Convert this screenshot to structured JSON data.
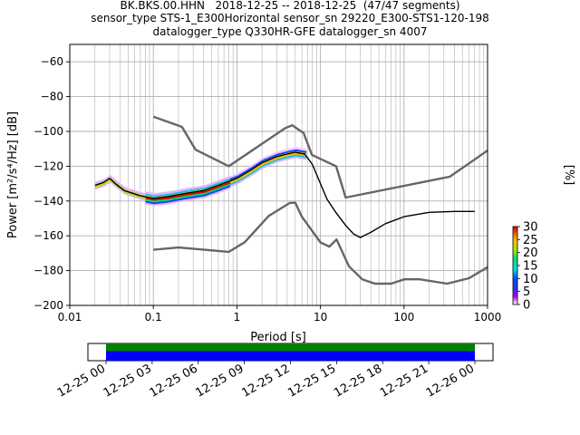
{
  "title": {
    "line1": "BK.BKS.00.HHN   2018-12-25 -- 2018-12-25  (47/47 segments)",
    "line2": "sensor_type STS-1_E300Horizontal sensor_sn 29220_E300-STS1-120-198",
    "line3": "datalogger_type Q330HR-GFE datalogger_sn 4007"
  },
  "colorbar": {
    "label": "[%]",
    "ticks": [
      "0",
      "5",
      "10",
      "15",
      "20",
      "25",
      "30"
    ],
    "range": [
      0,
      30
    ]
  },
  "timebar": {
    "ticks": [
      "12-25 00",
      "12-25 03",
      "12-25 06",
      "12-25 09",
      "12-25 12",
      "12-25 15",
      "12-25 18",
      "12-25 21",
      "12-26 00"
    ],
    "bands": [
      {
        "name": "data",
        "color": "#008000"
      },
      {
        "name": "gaps",
        "color": "#0000ff"
      }
    ]
  },
  "chart_data": {
    "type": "line",
    "xlabel": "Period [s]",
    "ylabel": "Power [m²/s⁴/Hz] [dB]",
    "xscale": "log",
    "xlim": [
      0.01,
      1000
    ],
    "ylim": [
      -200,
      -50
    ],
    "xticks": [
      {
        "value": 0.01,
        "label": "0.01"
      },
      {
        "value": 0.1,
        "label": "0.1"
      },
      {
        "value": 1,
        "label": "1"
      },
      {
        "value": 10,
        "label": "10"
      },
      {
        "value": 100,
        "label": "100"
      },
      {
        "value": 1000,
        "label": "1000"
      }
    ],
    "yticks": [
      {
        "value": -60,
        "label": "−60"
      },
      {
        "value": -80,
        "label": "−80"
      },
      {
        "value": -100,
        "label": "−100"
      },
      {
        "value": -120,
        "label": "−120"
      },
      {
        "value": -140,
        "label": "−140"
      },
      {
        "value": -160,
        "label": "−160"
      },
      {
        "value": -180,
        "label": "−180"
      },
      {
        "value": -200,
        "label": "−200"
      }
    ],
    "grid": true,
    "series": [
      {
        "role": "new-high-noise-model",
        "color": "#666666",
        "x": [
          0.1,
          0.22,
          0.32,
          0.8,
          3.8,
          4.6,
          6.3,
          7.9,
          15.4,
          20,
          354.8,
          1000
        ],
        "y": [
          -91.5,
          -97.4,
          -110.5,
          -120,
          -98,
          -96.5,
          -101,
          -113.5,
          -120,
          -138,
          -126,
          -111
        ]
      },
      {
        "role": "new-low-noise-model",
        "color": "#666666",
        "x": [
          0.1,
          0.2,
          0.8,
          1.24,
          2.4,
          4.3,
          5,
          6,
          10,
          12.8,
          15.6,
          21.9,
          31.6,
          45,
          70,
          101,
          154,
          328,
          600,
          1000
        ],
        "y": [
          -168,
          -166.7,
          -169.2,
          -163.7,
          -148.6,
          -141.1,
          -141,
          -149,
          -163.8,
          -166.2,
          -162.1,
          -177.5,
          -185,
          -187.5,
          -187.5,
          -185,
          -185,
          -187.5,
          -184.4,
          -178
        ]
      },
      {
        "role": "mean-psd",
        "color": "#000000",
        "x": [
          0.02,
          0.025,
          0.03,
          0.035,
          0.045,
          0.07,
          0.1,
          0.15,
          0.25,
          0.4,
          0.6,
          1,
          1.5,
          2,
          3,
          4,
          5,
          6.5,
          8,
          10,
          12,
          15,
          20,
          25,
          30,
          40,
          60,
          100,
          200,
          400,
          700
        ],
        "y": [
          -131,
          -129.5,
          -127,
          -130,
          -134,
          -137,
          -138.5,
          -137.5,
          -135.5,
          -134,
          -131,
          -127,
          -122,
          -118,
          -114.5,
          -113,
          -112,
          -113,
          -119,
          -130,
          -139,
          -146,
          -154,
          -159,
          -161,
          -158,
          -153,
          -149,
          -146.5,
          -146,
          -146
        ]
      }
    ],
    "histogram_color_range_percent": [
      0,
      30
    ]
  }
}
